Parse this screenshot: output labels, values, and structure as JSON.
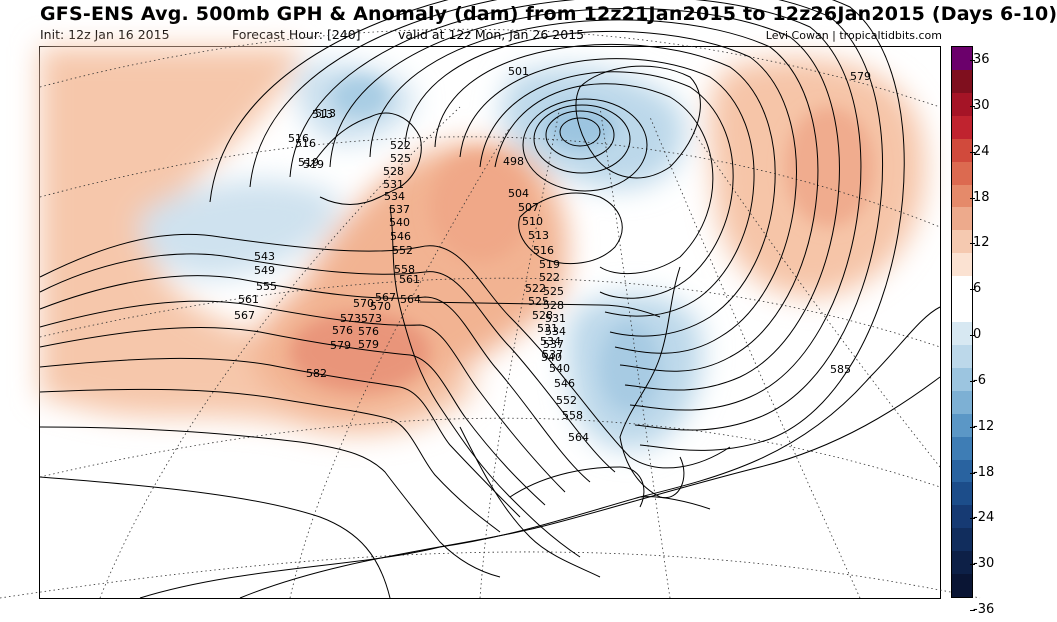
{
  "header": {
    "title": "GFS-ENS Avg. 500mb GPH & Anomaly (dam) from 12z21Jan2015 to 12z26Jan2015 (Days 6-10)",
    "init": "Init: 12z Jan 16 2015",
    "forecast_hour": "Forecast Hour: [240]",
    "valid": "valid at 12z Mon, Jan 26 2015",
    "credit": "Levi Cowan | tropicaltidbits.com"
  },
  "colorbar": {
    "labels": [
      "36",
      "30",
      "24",
      "18",
      "12",
      "6",
      "0",
      "-6",
      "-12",
      "-18",
      "-24",
      "-30",
      "-36"
    ],
    "colors": [
      "#6b006b",
      "#7f0f1e",
      "#a51426",
      "#c0232f",
      "#d14a3c",
      "#dc6a50",
      "#e58a6a",
      "#edaa8c",
      "#f5c9b0",
      "#fbe2d2",
      "#ffffff",
      "#ffffff",
      "#d7e8f2",
      "#bcd8ea",
      "#9cc5e0",
      "#7db0d4",
      "#5b97c6",
      "#3e7db5",
      "#2963a0",
      "#1c4d8a",
      "#163a73",
      "#112d5d",
      "#0d2047",
      "#0a1534"
    ]
  },
  "contour_labels": [
    "501",
    "498",
    "504",
    "507",
    "510",
    "513",
    "516",
    "519",
    "522",
    "525",
    "528",
    "531",
    "534",
    "537",
    "540",
    "543",
    "546",
    "549",
    "552",
    "555",
    "558",
    "561",
    "564",
    "567",
    "570",
    "573",
    "576",
    "579",
    "582",
    "585"
  ],
  "map_labels": [
    {
      "t": "501"
    },
    {
      "t": "498"
    },
    {
      "t": "504"
    },
    {
      "t": "507"
    },
    {
      "t": "510"
    },
    {
      "t": "513"
    },
    {
      "t": "516"
    },
    {
      "t": "519"
    },
    {
      "t": "522"
    },
    {
      "t": "525"
    },
    {
      "t": "528"
    },
    {
      "t": "531"
    },
    {
      "t": "534"
    },
    {
      "t": "537"
    },
    {
      "t": "540"
    },
    {
      "t": "513"
    },
    {
      "t": "516"
    },
    {
      "t": "519"
    },
    {
      "t": "522"
    },
    {
      "t": "525"
    },
    {
      "t": "528"
    },
    {
      "t": "531"
    },
    {
      "t": "534"
    },
    {
      "t": "537"
    },
    {
      "t": "540"
    },
    {
      "t": "546"
    },
    {
      "t": "552"
    },
    {
      "t": "558"
    },
    {
      "t": "561"
    },
    {
      "t": "564"
    },
    {
      "t": "567"
    },
    {
      "t": "570"
    },
    {
      "t": "573"
    },
    {
      "t": "576"
    },
    {
      "t": "579"
    },
    {
      "t": "522"
    },
    {
      "t": "525"
    },
    {
      "t": "528"
    },
    {
      "t": "531"
    },
    {
      "t": "534"
    },
    {
      "t": "537"
    },
    {
      "t": "540"
    },
    {
      "t": "546"
    },
    {
      "t": "552"
    },
    {
      "t": "558"
    },
    {
      "t": "564"
    },
    {
      "t": "543"
    },
    {
      "t": "549"
    },
    {
      "t": "555"
    },
    {
      "t": "561"
    },
    {
      "t": "567"
    },
    {
      "t": "570"
    },
    {
      "t": "573"
    },
    {
      "t": "576"
    },
    {
      "t": "579"
    },
    {
      "t": "582"
    },
    {
      "t": "516"
    },
    {
      "t": "519"
    },
    {
      "t": "513"
    },
    {
      "t": "579"
    },
    {
      "t": "585"
    }
  ]
}
